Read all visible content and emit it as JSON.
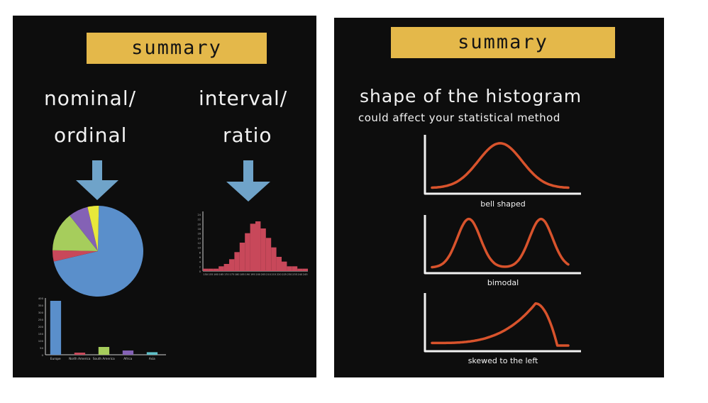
{
  "left": {
    "banner": "summary",
    "heading_left_1": "nominal/",
    "heading_left_2": "ordinal",
    "heading_right_1": "interval/",
    "heading_right_2": "ratio",
    "arrow_color": "#6fa3c9",
    "pie": {
      "type": "pie",
      "slices": [
        {
          "value": 0.71,
          "color": "#5a8fcb"
        },
        {
          "value": 0.04,
          "color": "#c8485a"
        },
        {
          "value": 0.14,
          "color": "#a6cd5c"
        },
        {
          "value": 0.07,
          "color": "#8462b5"
        },
        {
          "value": 0.04,
          "color": "#e8e83a"
        }
      ]
    },
    "histogram": {
      "type": "bar",
      "color": "#c8485a",
      "values": [
        1,
        1,
        1,
        2,
        3,
        5,
        8,
        12,
        16,
        20,
        21,
        18,
        14,
        10,
        6,
        4,
        2,
        2,
        1,
        1
      ],
      "yticks": [
        "0",
        "2",
        "4",
        "6",
        "8",
        "10",
        "12",
        "14",
        "16",
        "18",
        "20",
        "22",
        "24"
      ],
      "ylim": [
        0,
        24
      ],
      "xticks": [
        "150",
        "155",
        "160",
        "165",
        "170",
        "175",
        "180",
        "185",
        "190",
        "195",
        "200",
        "205",
        "210",
        "215",
        "220",
        "225",
        "230",
        "235",
        "240",
        "245"
      ]
    },
    "bar_chart": {
      "type": "bar",
      "categories": [
        "Europe",
        "North America",
        "South America",
        "Africa",
        "Asia"
      ],
      "values": [
        380,
        15,
        55,
        30,
        18
      ],
      "colors": [
        "#5a8fcb",
        "#c8485a",
        "#a6cd5c",
        "#8462b5",
        "#5ec0c8"
      ],
      "yticks": [
        "0",
        "50",
        "100",
        "150",
        "200",
        "250",
        "300",
        "350",
        "400"
      ],
      "ylim": [
        0,
        400
      ]
    }
  },
  "right": {
    "banner": "summary",
    "title": "shape of the histogram",
    "subtitle": "could affect your statistical method",
    "curve_color": "#d8532c",
    "captions": [
      "bell shaped",
      "bimodal",
      "skewed to the left"
    ]
  }
}
